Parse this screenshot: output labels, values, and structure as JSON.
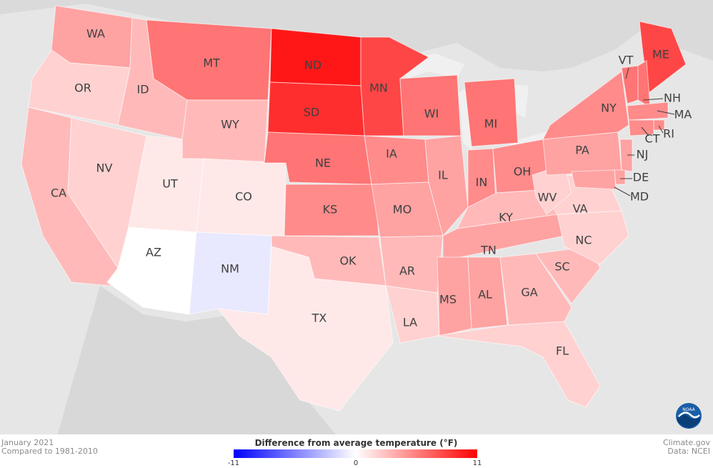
{
  "map": {
    "legend_title": "Difference from average temperature (°F)",
    "legend_min": "-11",
    "legend_mid": "0",
    "legend_max": "11",
    "color_low": "#0000ff",
    "color_mid": "#ffffff",
    "color_high": "#ff0000",
    "states": [
      {
        "abbr": "WA",
        "anomaly": 4
      },
      {
        "abbr": "OR",
        "anomaly": 2
      },
      {
        "abbr": "ID",
        "anomaly": 3
      },
      {
        "abbr": "MT",
        "anomaly": 6
      },
      {
        "abbr": "ND",
        "anomaly": 10
      },
      {
        "abbr": "MN",
        "anomaly": 8
      },
      {
        "abbr": "SD",
        "anomaly": 9
      },
      {
        "abbr": "WY",
        "anomaly": 3
      },
      {
        "abbr": "CA",
        "anomaly": 3
      },
      {
        "abbr": "NV",
        "anomaly": 2
      },
      {
        "abbr": "UT",
        "anomaly": 1
      },
      {
        "abbr": "CO",
        "anomaly": 1
      },
      {
        "abbr": "AZ",
        "anomaly": 0
      },
      {
        "abbr": "NM",
        "anomaly": -1
      },
      {
        "abbr": "NE",
        "anomaly": 6
      },
      {
        "abbr": "KS",
        "anomaly": 5
      },
      {
        "abbr": "OK",
        "anomaly": 3
      },
      {
        "abbr": "TX",
        "anomaly": 1
      },
      {
        "abbr": "IA",
        "anomaly": 5
      },
      {
        "abbr": "MO",
        "anomaly": 4
      },
      {
        "abbr": "AR",
        "anomaly": 3
      },
      {
        "abbr": "LA",
        "anomaly": 2
      },
      {
        "abbr": "WI",
        "anomaly": 6
      },
      {
        "abbr": "IL",
        "anomaly": 4
      },
      {
        "abbr": "MI",
        "anomaly": 6
      },
      {
        "abbr": "IN",
        "anomaly": 5
      },
      {
        "abbr": "OH",
        "anomaly": 5
      },
      {
        "abbr": "KY",
        "anomaly": 3
      },
      {
        "abbr": "TN",
        "anomaly": 4
      },
      {
        "abbr": "MS",
        "anomaly": 4
      },
      {
        "abbr": "AL",
        "anomaly": 4
      },
      {
        "abbr": "GA",
        "anomaly": 3
      },
      {
        "abbr": "FL",
        "anomaly": 2
      },
      {
        "abbr": "SC",
        "anomaly": 3
      },
      {
        "abbr": "NC",
        "anomaly": 2
      },
      {
        "abbr": "VA",
        "anomaly": 2
      },
      {
        "abbr": "WV",
        "anomaly": 2
      },
      {
        "abbr": "PA",
        "anomaly": 4
      },
      {
        "abbr": "NY",
        "anomaly": 5
      },
      {
        "abbr": "VT",
        "anomaly": 6
      },
      {
        "abbr": "ME",
        "anomaly": 8
      },
      {
        "abbr": "NH",
        "anomaly": 6
      },
      {
        "abbr": "MA",
        "anomaly": 5
      },
      {
        "abbr": "RI",
        "anomaly": 5
      },
      {
        "abbr": "CT",
        "anomaly": 5
      },
      {
        "abbr": "NJ",
        "anomaly": 4
      },
      {
        "abbr": "DE",
        "anomaly": 4
      },
      {
        "abbr": "MD",
        "anomaly": 4
      }
    ]
  },
  "footer": {
    "date": "January 2021",
    "baseline": "Compared to 1981-2010",
    "source_site": "Climate.gov",
    "source_data": "Data: NCEI",
    "logo_text": "NOAA"
  }
}
